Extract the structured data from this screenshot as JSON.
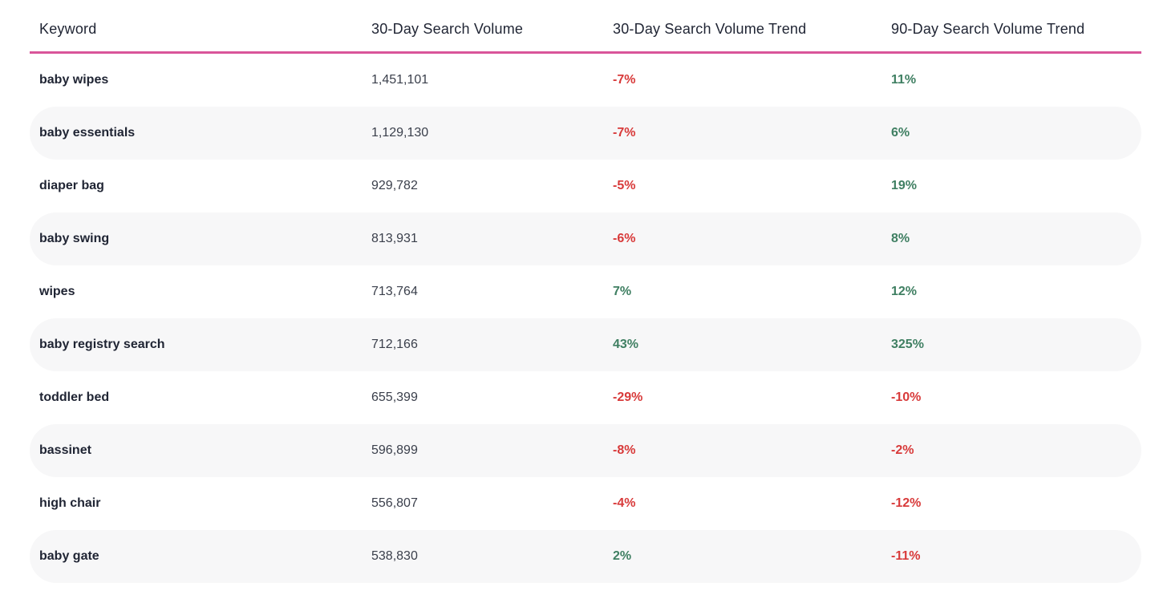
{
  "table": {
    "columns": [
      "Keyword",
      "30-Day Search Volume",
      "30-Day Search Volume Trend",
      "90-Day Search Volume Trend"
    ],
    "rows": [
      {
        "keyword": "baby wipes",
        "volume": "1,451,101",
        "trend30": "-7%",
        "trend90": "11%"
      },
      {
        "keyword": "baby essentials",
        "volume": "1,129,130",
        "trend30": "-7%",
        "trend90": "6%"
      },
      {
        "keyword": "diaper bag",
        "volume": "929,782",
        "trend30": "-5%",
        "trend90": "19%"
      },
      {
        "keyword": "baby swing",
        "volume": "813,931",
        "trend30": "-6%",
        "trend90": "8%"
      },
      {
        "keyword": "wipes",
        "volume": "713,764",
        "trend30": "7%",
        "trend90": "12%"
      },
      {
        "keyword": "baby registry search",
        "volume": "712,166",
        "trend30": "43%",
        "trend90": "325%"
      },
      {
        "keyword": "toddler bed",
        "volume": "655,399",
        "trend30": "-29%",
        "trend90": "-10%"
      },
      {
        "keyword": "bassinet",
        "volume": "596,899",
        "trend30": "-8%",
        "trend90": "-2%"
      },
      {
        "keyword": "high chair",
        "volume": "556,807",
        "trend30": "-4%",
        "trend90": "-12%"
      },
      {
        "keyword": "baby gate",
        "volume": "538,830",
        "trend30": "2%",
        "trend90": "-11%"
      }
    ]
  },
  "colors": {
    "accent": "#d9559a",
    "negative": "#d83a3a",
    "positive": "#3f7f62",
    "row_alt": "#f7f7f8"
  }
}
